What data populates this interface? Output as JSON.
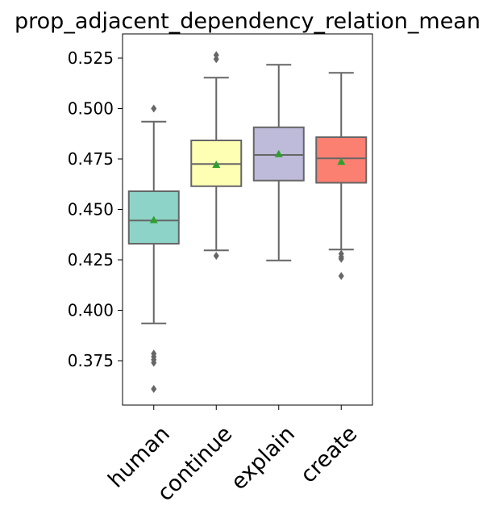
{
  "chart_data": {
    "type": "box",
    "title": "prop_adjacent_dependency_relation_mean",
    "xlabel": "",
    "ylabel": "",
    "ylim": [
      0.353,
      0.537
    ],
    "yticks": [
      0.375,
      0.4,
      0.425,
      0.45,
      0.475,
      0.5,
      0.525
    ],
    "ytick_labels": [
      "0.375",
      "0.400",
      "0.425",
      "0.450",
      "0.475",
      "0.500",
      "0.525"
    ],
    "grid": false,
    "legend": "none",
    "categories": [
      "human",
      "continue",
      "explain",
      "create"
    ],
    "boxes": [
      {
        "category": "human",
        "color": "#8dd3c7",
        "q1": 0.433,
        "median": 0.4445,
        "q3": 0.459,
        "mean": 0.4448,
        "whisker_low": 0.3935,
        "whisker_high": 0.4935,
        "outliers": [
          0.5,
          0.3785,
          0.377,
          0.3755,
          0.374,
          0.361
        ]
      },
      {
        "category": "continue",
        "color": "#ffffb3",
        "q1": 0.4615,
        "median": 0.4725,
        "q3": 0.4842,
        "mean": 0.4722,
        "whisker_low": 0.4297,
        "whisker_high": 0.5153,
        "outliers": [
          0.5265,
          0.5245,
          0.427
        ]
      },
      {
        "category": "explain",
        "color": "#bebada",
        "q1": 0.4643,
        "median": 0.477,
        "q3": 0.4907,
        "mean": 0.4775,
        "whisker_low": 0.4247,
        "whisker_high": 0.5217,
        "outliers": []
      },
      {
        "category": "create",
        "color": "#fb8072",
        "q1": 0.4632,
        "median": 0.4753,
        "q3": 0.4858,
        "mean": 0.4737,
        "whisker_low": 0.4301,
        "whisker_high": 0.5177,
        "outliers": [
          0.428,
          0.4265,
          0.4255,
          0.417
        ]
      }
    ],
    "line_color": "#666666",
    "mean_marker_color": "#2ca02c"
  }
}
